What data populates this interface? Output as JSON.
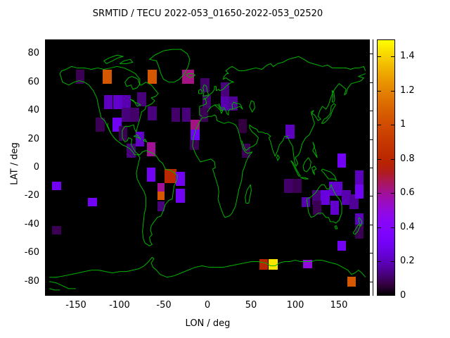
{
  "title": "SRMTID / TECU 2022-053_01650-2022-053_02520",
  "chart_data": {
    "type": "heatmap",
    "title": "SRMTID / TECU 2022-053_01650-2022-053_02520",
    "xlabel": "LON / deg",
    "ylabel": "LAT / deg",
    "xlim": [
      -185,
      185
    ],
    "ylim": [
      -90,
      90
    ],
    "x_ticks": [
      -150,
      -100,
      -50,
      0,
      50,
      100,
      150
    ],
    "x_tick_labels": [
      "-150",
      "-100",
      "-50",
      "0",
      "50",
      "100",
      "150"
    ],
    "y_ticks": [
      80,
      60,
      40,
      20,
      0,
      -20,
      -40,
      -60,
      -80
    ],
    "y_tick_labels": [
      "80",
      "60",
      "40",
      "20",
      "0",
      "-20",
      "-40",
      "-60",
      "-80"
    ],
    "grid": false,
    "plot_background": "#000000",
    "coastline_color": "#00b400",
    "cell_size_deg": 10,
    "colorbar": {
      "min": 0,
      "max": 1.5,
      "ticks": [
        0,
        0.2,
        0.4,
        0.6,
        0.8,
        1,
        1.2,
        1.4
      ],
      "tick_labels": [
        "0",
        "0.2",
        "0.4",
        "0.6",
        "0.8",
        "1",
        "1.2",
        "1.4"
      ],
      "palette": "pm3d-traditional black-purple-red-orange-yellow",
      "position": "right"
    },
    "unit": "TECU",
    "cells": [
      {
        "lon": -145,
        "lat": 64,
        "v": 0.08
      },
      {
        "lon": -114,
        "lat": 64,
        "v": 1.05
      },
      {
        "lon": -63,
        "lat": 64,
        "v": 1.05
      },
      {
        "lon": -22,
        "lat": 64,
        "v": 0.62,
        "w": 13
      },
      {
        "lon": -113,
        "lat": 46,
        "v": 0.2
      },
      {
        "lon": -102,
        "lat": 46,
        "v": 0.22
      },
      {
        "lon": -92,
        "lat": 46,
        "v": 0.18
      },
      {
        "lon": -75,
        "lat": 48,
        "v": 0.12
      },
      {
        "lon": -93,
        "lat": 37,
        "v": 0.12
      },
      {
        "lon": -83,
        "lat": 37,
        "v": 0.1
      },
      {
        "lon": -63,
        "lat": 38,
        "v": 0.12
      },
      {
        "lon": -122,
        "lat": 30,
        "v": 0.08
      },
      {
        "lon": -103,
        "lat": 30,
        "v": 0.3
      },
      {
        "lon": -96,
        "lat": 24,
        "v": 0.08
      },
      {
        "lon": -77,
        "lat": 20,
        "v": 0.22
      },
      {
        "lon": -87,
        "lat": 12,
        "v": 0.12
      },
      {
        "lon": -64,
        "lat": 13,
        "v": 0.6
      },
      {
        "lon": -36,
        "lat": 37,
        "v": 0.1
      },
      {
        "lon": -24,
        "lat": 37,
        "v": 0.12
      },
      {
        "lon": -14,
        "lat": 30,
        "v": 0.62,
        "h": 7
      },
      {
        "lon": -14,
        "lat": 23,
        "v": 0.3,
        "h": 7
      },
      {
        "lon": -15,
        "lat": 16,
        "v": 0.08,
        "h": 7
      },
      {
        "lon": -3,
        "lat": 58,
        "v": 0.1
      },
      {
        "lon": 20,
        "lat": 55,
        "v": 0.12
      },
      {
        "lon": -1,
        "lat": 46,
        "v": 0.1
      },
      {
        "lon": 20,
        "lat": 45,
        "v": 0.18
      },
      {
        "lon": 29,
        "lat": 45,
        "v": 0.15
      },
      {
        "lon": -4,
        "lat": 37,
        "v": 0.08
      },
      {
        "lon": 40,
        "lat": 29,
        "v": 0.06
      },
      {
        "lon": 44,
        "lat": 12,
        "v": 0.08
      },
      {
        "lon": 94,
        "lat": 25,
        "v": 0.2
      },
      {
        "lon": 92,
        "lat": -13,
        "v": 0.1
      },
      {
        "lon": 102,
        "lat": -13,
        "v": 0.08
      },
      {
        "lon": -64,
        "lat": -5,
        "v": 0.3
      },
      {
        "lon": -42,
        "lat": -6,
        "v": 0.8,
        "w": 13
      },
      {
        "lon": -31,
        "lat": -8,
        "v": 0.3
      },
      {
        "lon": -53,
        "lat": -14,
        "v": 0.6,
        "w": 8,
        "h": 6
      },
      {
        "lon": -53,
        "lat": -20,
        "v": 1.05,
        "w": 8,
        "h": 6
      },
      {
        "lon": -31,
        "lat": -20,
        "v": 0.3
      },
      {
        "lon": -53,
        "lat": -27,
        "v": 0.12,
        "w": 8,
        "h": 7
      },
      {
        "lon": -172,
        "lat": -13,
        "v": 0.3,
        "h": 6
      },
      {
        "lon": -131,
        "lat": -24,
        "v": 0.3,
        "h": 6
      },
      {
        "lon": -172,
        "lat": -44,
        "v": 0.08,
        "h": 6
      },
      {
        "lon": 153,
        "lat": 5,
        "v": 0.3
      },
      {
        "lon": 146,
        "lat": -15,
        "v": 0.22,
        "w": 15
      },
      {
        "lon": 112,
        "lat": -24,
        "v": 0.18,
        "h": 7
      },
      {
        "lon": 124,
        "lat": -21,
        "v": 0.12
      },
      {
        "lon": 134,
        "lat": -21,
        "v": 0.25
      },
      {
        "lon": 158,
        "lat": -21,
        "v": 0.18
      },
      {
        "lon": 167,
        "lat": -24,
        "v": 0.15
      },
      {
        "lon": 145,
        "lat": -28,
        "v": 0.22
      },
      {
        "lon": 125,
        "lat": -28,
        "v": 0.08
      },
      {
        "lon": 173,
        "lat": -7,
        "v": 0.2,
        "w": 9
      },
      {
        "lon": 173,
        "lat": -17,
        "v": 0.3,
        "w": 9
      },
      {
        "lon": 173,
        "lat": -37,
        "v": 0.2,
        "w": 9
      },
      {
        "lon": 173,
        "lat": -45,
        "v": 0.08,
        "w": 9
      },
      {
        "lon": 153,
        "lat": -55,
        "v": 0.3,
        "h": 7
      },
      {
        "lon": 64,
        "lat": -68,
        "v": 0.78,
        "h": 7
      },
      {
        "lon": 75,
        "lat": -68,
        "v": 1.45,
        "h": 7
      },
      {
        "lon": 114,
        "lat": -68,
        "v": 0.5,
        "h": 6
      },
      {
        "lon": 164,
        "lat": -80,
        "v": 1.05,
        "h": 7
      }
    ]
  }
}
